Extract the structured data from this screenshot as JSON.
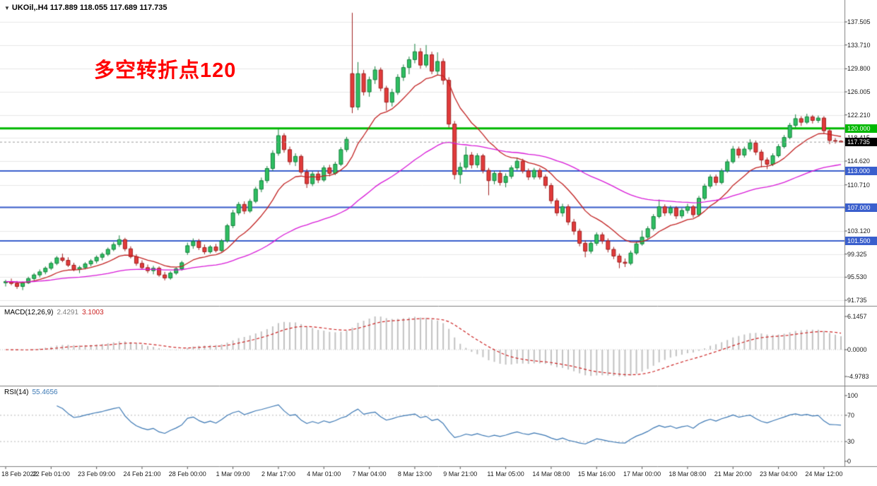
{
  "window": {
    "title_symbol": "UKOil,.H4",
    "title_ohlc": "117.889 118.055 117.689 117.735"
  },
  "annotation": {
    "text": "多空转折点120",
    "color": "#FF0000"
  },
  "indicators": {
    "macd": {
      "label": "MACD(12,26,9)",
      "value_main": "2.4291",
      "value_signal": "3.1003",
      "axis": [
        "6.1457",
        "0.0000",
        "-4.9783"
      ],
      "params": {
        "fast": 12,
        "slow": 26,
        "signal": 9
      },
      "histogram_color": "#C2C2C2",
      "signal_color": "#CC2222"
    },
    "rsi": {
      "label": "RSI(14)",
      "value": "55.4656",
      "period": 14,
      "axis": [
        "100",
        "70",
        "30",
        "0"
      ],
      "axis_values": [
        100,
        70,
        30,
        0
      ],
      "levels": [
        70,
        30
      ],
      "line_color": "#3C78B4"
    }
  },
  "chart_data": {
    "type": "candlestick",
    "symbol": "UKOil",
    "timeframe": "H4",
    "ylim": [
      90.8,
      139.5
    ],
    "y_ticks": [
      137.505,
      133.71,
      129.8,
      126.005,
      122.21,
      118.415,
      114.62,
      110.71,
      106.915,
      103.12,
      99.325,
      95.53,
      91.735
    ],
    "x_tick_labels": [
      "18 Feb 2022",
      "22 Feb 01:00",
      "23 Feb 09:00",
      "24 Feb 21:00",
      "28 Feb 00:00",
      "1 Mar 09:00",
      "2 Mar 17:00",
      "4 Mar 01:00",
      "7 Mar 04:00",
      "8 Mar 13:00",
      "9 Mar 21:00",
      "11 Mar 05:00",
      "14 Mar 08:00",
      "15 Mar 16:00",
      "17 Mar 00:00",
      "18 Mar 08:00",
      "21 Mar 20:00",
      "23 Mar 04:00",
      "24 Mar 12:00"
    ],
    "tick_every": 8,
    "up_color": "#2FBF62",
    "down_color": "#E23B3B",
    "hlines": [
      {
        "value": 120.0,
        "label": "120.000",
        "color": "#00B800",
        "width": 3
      },
      {
        "value": 113.0,
        "label": "113.000",
        "color": "#3A5FCD",
        "width": 2
      },
      {
        "value": 107.0,
        "label": "107.000",
        "color": "#3A5FCD",
        "width": 2
      },
      {
        "value": 101.5,
        "label": "101.500",
        "color": "#3A5FCD",
        "width": 2
      }
    ],
    "current_price": {
      "value": 117.735,
      "label": "117.735",
      "badge_color": "#000000"
    },
    "moving_averages": [
      {
        "type": "ema",
        "period": 12,
        "color": "#C22222"
      },
      {
        "type": "ema",
        "period": 50,
        "color": "#D819D8"
      }
    ],
    "candles": [
      [
        94.6,
        95.1,
        94.0,
        94.8
      ],
      [
        94.8,
        95.3,
        94.2,
        94.5
      ],
      [
        94.5,
        94.9,
        93.6,
        94.0
      ],
      [
        94.0,
        94.8,
        93.4,
        94.6
      ],
      [
        94.6,
        95.6,
        94.4,
        95.3
      ],
      [
        95.3,
        96.2,
        95.0,
        95.9
      ],
      [
        95.9,
        96.8,
        95.5,
        96.4
      ],
      [
        96.4,
        97.3,
        96.0,
        97.0
      ],
      [
        97.0,
        98.1,
        96.7,
        97.8
      ],
      [
        97.8,
        99.0,
        97.5,
        98.7
      ],
      [
        98.7,
        99.4,
        98.0,
        98.3
      ],
      [
        98.3,
        98.8,
        97.2,
        97.5
      ],
      [
        97.5,
        97.9,
        96.5,
        96.8
      ],
      [
        96.8,
        97.4,
        96.2,
        97.1
      ],
      [
        97.1,
        98.0,
        96.8,
        97.7
      ],
      [
        97.7,
        98.5,
        97.3,
        98.2
      ],
      [
        98.2,
        99.1,
        97.8,
        98.8
      ],
      [
        98.8,
        99.6,
        98.3,
        99.3
      ],
      [
        99.3,
        100.4,
        99.0,
        100.1
      ],
      [
        100.1,
        101.3,
        99.8,
        100.9
      ],
      [
        100.9,
        102.4,
        100.5,
        101.7
      ],
      [
        101.7,
        102.0,
        99.8,
        100.2
      ],
      [
        100.2,
        100.6,
        98.6,
        98.9
      ],
      [
        98.9,
        99.3,
        97.4,
        97.8
      ],
      [
        97.8,
        98.3,
        96.8,
        97.1
      ],
      [
        97.1,
        97.6,
        96.2,
        96.6
      ],
      [
        96.6,
        97.4,
        96.0,
        97.0
      ],
      [
        97.0,
        97.3,
        95.6,
        95.9
      ],
      [
        95.9,
        96.4,
        95.0,
        95.4
      ],
      [
        95.4,
        96.5,
        95.1,
        96.2
      ],
      [
        96.2,
        97.2,
        95.9,
        96.9
      ],
      [
        96.9,
        98.2,
        96.6,
        97.9
      ],
      [
        99.6,
        101.2,
        99.2,
        100.7
      ],
      [
        100.7,
        101.9,
        100.2,
        101.4
      ],
      [
        101.4,
        101.8,
        100.0,
        100.4
      ],
      [
        100.4,
        100.9,
        99.3,
        99.7
      ],
      [
        99.7,
        100.8,
        99.4,
        100.5
      ],
      [
        100.5,
        101.0,
        99.6,
        99.9
      ],
      [
        99.9,
        101.8,
        99.7,
        101.5
      ],
      [
        101.5,
        104.3,
        101.2,
        104.0
      ],
      [
        104.0,
        106.6,
        103.6,
        106.1
      ],
      [
        106.1,
        107.9,
        105.7,
        107.5
      ],
      [
        107.5,
        108.0,
        105.9,
        106.4
      ],
      [
        106.4,
        108.4,
        106.1,
        108.0
      ],
      [
        108.0,
        110.4,
        107.7,
        110.0
      ],
      [
        110.0,
        111.9,
        109.5,
        111.4
      ],
      [
        111.4,
        113.8,
        111.0,
        113.4
      ],
      [
        113.4,
        116.4,
        113.0,
        115.9
      ],
      [
        115.9,
        119.9,
        115.5,
        118.8
      ],
      [
        118.8,
        119.2,
        116.0,
        116.5
      ],
      [
        116.5,
        117.0,
        114.0,
        114.5
      ],
      [
        114.5,
        115.9,
        113.8,
        115.4
      ],
      [
        115.4,
        115.7,
        112.4,
        112.8
      ],
      [
        112.8,
        113.3,
        110.2,
        110.9
      ],
      [
        110.9,
        112.9,
        110.5,
        112.5
      ],
      [
        112.5,
        113.0,
        111.0,
        111.5
      ],
      [
        111.5,
        113.9,
        111.2,
        113.5
      ],
      [
        113.5,
        114.0,
        112.1,
        112.6
      ],
      [
        112.6,
        114.5,
        112.3,
        114.1
      ],
      [
        114.1,
        116.9,
        113.8,
        116.5
      ],
      [
        116.5,
        118.6,
        116.1,
        118.2
      ],
      [
        129.0,
        139.0,
        122.5,
        123.5
      ],
      [
        123.5,
        130.9,
        123.0,
        129.0
      ],
      [
        129.0,
        129.6,
        125.4,
        126.0
      ],
      [
        126.0,
        128.5,
        125.2,
        128.0
      ],
      [
        128.0,
        130.2,
        127.3,
        129.6
      ],
      [
        129.6,
        130.0,
        126.1,
        126.6
      ],
      [
        126.6,
        127.0,
        122.9,
        124.3
      ],
      [
        124.3,
        126.5,
        123.6,
        125.9
      ],
      [
        125.9,
        128.9,
        125.5,
        128.4
      ],
      [
        128.4,
        130.5,
        127.8,
        130.0
      ],
      [
        130.0,
        131.8,
        128.9,
        131.3
      ],
      [
        131.3,
        133.9,
        130.7,
        132.6
      ],
      [
        132.6,
        133.2,
        129.8,
        130.4
      ],
      [
        130.4,
        133.7,
        130.0,
        132.1
      ],
      [
        132.1,
        132.6,
        128.9,
        129.4
      ],
      [
        129.4,
        132.5,
        128.8,
        131.0
      ],
      [
        131.0,
        131.5,
        127.2,
        127.9
      ],
      [
        127.9,
        128.4,
        120.1,
        120.7
      ],
      [
        120.7,
        121.2,
        111.6,
        112.4
      ],
      [
        112.4,
        114.4,
        110.9,
        113.6
      ],
      [
        113.6,
        117.0,
        113.2,
        115.6
      ],
      [
        115.6,
        116.1,
        113.4,
        114.0
      ],
      [
        114.0,
        115.9,
        113.5,
        115.5
      ],
      [
        115.5,
        115.8,
        112.6,
        113.1
      ],
      [
        113.1,
        113.5,
        109.0,
        111.4
      ],
      [
        111.4,
        113.0,
        110.8,
        112.6
      ],
      [
        112.6,
        113.1,
        110.6,
        111.1
      ],
      [
        111.1,
        112.6,
        110.3,
        112.1
      ],
      [
        112.1,
        113.9,
        111.7,
        113.5
      ],
      [
        113.5,
        115.2,
        113.1,
        114.6
      ],
      [
        114.6,
        115.0,
        112.6,
        113.0
      ],
      [
        113.0,
        113.4,
        111.5,
        112.0
      ],
      [
        112.0,
        113.5,
        111.6,
        113.1
      ],
      [
        113.1,
        113.5,
        111.6,
        112.0
      ],
      [
        112.0,
        112.4,
        110.1,
        110.6
      ],
      [
        110.6,
        111.0,
        107.6,
        108.1
      ],
      [
        108.1,
        108.5,
        105.6,
        106.1
      ],
      [
        106.1,
        107.6,
        105.5,
        107.1
      ],
      [
        107.1,
        107.5,
        104.1,
        104.6
      ],
      [
        104.6,
        105.1,
        102.5,
        103.1
      ],
      [
        103.1,
        103.5,
        100.6,
        101.1
      ],
      [
        101.1,
        101.6,
        98.8,
        99.8
      ],
      [
        99.8,
        101.5,
        99.4,
        101.1
      ],
      [
        101.1,
        102.9,
        100.7,
        102.5
      ],
      [
        102.5,
        102.9,
        101.0,
        101.5
      ],
      [
        101.5,
        101.9,
        99.6,
        100.1
      ],
      [
        100.1,
        100.5,
        98.5,
        99.0
      ],
      [
        99.0,
        99.4,
        97.0,
        98.0
      ],
      [
        98.0,
        98.6,
        97.2,
        97.8
      ],
      [
        97.8,
        99.9,
        97.5,
        99.5
      ],
      [
        99.5,
        101.4,
        99.2,
        101.0
      ],
      [
        101.0,
        103.2,
        100.7,
        102.1
      ],
      [
        102.1,
        103.9,
        101.8,
        103.5
      ],
      [
        103.5,
        105.9,
        103.2,
        105.5
      ],
      [
        105.5,
        108.3,
        105.2,
        107.1
      ],
      [
        107.1,
        107.5,
        105.6,
        106.1
      ],
      [
        106.1,
        107.3,
        105.7,
        106.9
      ],
      [
        106.9,
        107.2,
        105.1,
        105.6
      ],
      [
        105.6,
        106.9,
        105.2,
        106.5
      ],
      [
        106.5,
        107.6,
        106.0,
        107.1
      ],
      [
        107.1,
        107.4,
        105.3,
        105.8
      ],
      [
        105.8,
        108.9,
        105.5,
        108.5
      ],
      [
        108.5,
        110.9,
        108.2,
        110.5
      ],
      [
        110.5,
        112.4,
        110.1,
        112.0
      ],
      [
        112.0,
        112.4,
        110.6,
        111.1
      ],
      [
        111.1,
        113.4,
        110.8,
        113.0
      ],
      [
        113.0,
        114.9,
        112.7,
        114.5
      ],
      [
        114.5,
        117.1,
        114.2,
        116.6
      ],
      [
        116.6,
        117.0,
        115.1,
        115.6
      ],
      [
        115.6,
        117.0,
        115.2,
        116.6
      ],
      [
        116.6,
        118.2,
        116.2,
        117.6
      ],
      [
        117.6,
        118.0,
        115.6,
        116.1
      ],
      [
        116.1,
        116.5,
        113.6,
        114.8
      ],
      [
        114.8,
        115.2,
        113.3,
        114.1
      ],
      [
        114.1,
        115.9,
        113.8,
        115.5
      ],
      [
        115.5,
        117.4,
        115.2,
        117.0
      ],
      [
        117.0,
        118.9,
        116.7,
        118.5
      ],
      [
        118.5,
        120.9,
        118.2,
        120.5
      ],
      [
        120.5,
        122.3,
        120.1,
        121.6
      ],
      [
        121.6,
        122.0,
        120.4,
        121.0
      ],
      [
        121.0,
        122.4,
        120.7,
        121.9
      ],
      [
        121.9,
        122.2,
        120.8,
        121.3
      ],
      [
        121.3,
        122.1,
        120.9,
        121.7
      ],
      [
        121.7,
        122.0,
        119.1,
        119.6
      ],
      [
        119.6,
        119.9,
        117.4,
        118.0
      ],
      [
        118.0,
        118.4,
        117.5,
        117.9
      ],
      [
        117.889,
        118.055,
        117.689,
        117.735
      ]
    ]
  }
}
